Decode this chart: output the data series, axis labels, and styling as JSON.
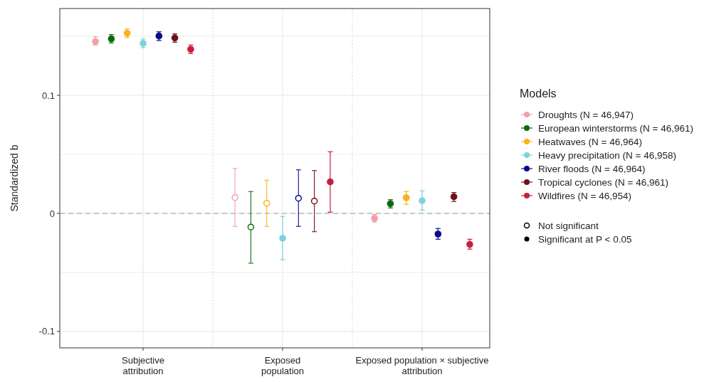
{
  "chart_data": {
    "type": "scatter",
    "ylabel": "Standardized b",
    "legend_title": "Models",
    "legend": "right",
    "grid": true,
    "marker": "circle",
    "categories": [
      "Subjective\nattribution",
      "Exposed\npopulation",
      "Exposed population × subjective\nattribution"
    ],
    "ylim": [
      -0.1139,
      0.1735
    ],
    "yticks": [
      {
        "value": -0.1,
        "label": "-0.1"
      },
      {
        "value": -0.05,
        "label": null
      },
      0,
      {
        "value": 0.05,
        "label": null
      },
      0.1,
      {
        "value": 0.15,
        "label": null
      }
    ],
    "ref_lines": [
      {
        "axis": "y",
        "value": 0,
        "line_style": "dashed",
        "color": "#bbbbbb"
      }
    ],
    "annotations": [
      "Not significant",
      "Significant at P < 0.05"
    ],
    "series": [
      {
        "name": "Droughts (N = 46,947)",
        "color": "#f0a0aa",
        "values": [
          0.1456,
          0.0134,
          -0.0042
        ],
        "errors": [
          [
            0.1426,
            0.1496
          ],
          [
            -0.011,
            0.0381
          ],
          [
            -0.0074,
            -0.001
          ]
        ]
      },
      {
        "name": "European winterstorms (N = 46,961)",
        "color": "#0b6b0b",
        "values": [
          0.1478,
          -0.0116,
          0.0082
        ],
        "errors": [
          [
            0.1444,
            0.1514
          ],
          [
            -0.0422,
            0.0185
          ],
          [
            0.0046,
            0.0116
          ]
        ]
      },
      {
        "name": "Heatwaves (N = 46,964)",
        "color": "#fbb117",
        "values": [
          0.1526,
          0.0086,
          0.0133
        ],
        "errors": [
          [
            0.149,
            0.1562
          ],
          [
            -0.011,
            0.0281
          ],
          [
            0.0077,
            0.0185
          ]
        ]
      },
      {
        "name": "Heavy precipitation (N = 46,958)",
        "color": "#7dd2de",
        "values": [
          0.144,
          -0.0211,
          0.0108
        ],
        "errors": [
          [
            0.1404,
            0.1476
          ],
          [
            -0.0392,
            -0.0026
          ],
          [
            0.0028,
            0.0191
          ]
        ]
      },
      {
        "name": "River floods (N = 46,964)",
        "color": "#0b0b8c",
        "values": [
          0.1502,
          0.0128,
          -0.0175
        ],
        "errors": [
          [
            0.1464,
            0.1538
          ],
          [
            -0.011,
            0.0369
          ],
          [
            -0.0219,
            -0.0128
          ]
        ]
      },
      {
        "name": "Tropical cyclones (N = 46,961)",
        "color": "#6e1119",
        "values": [
          0.1486,
          0.0104,
          0.0141
        ],
        "errors": [
          [
            0.145,
            0.152
          ],
          [
            -0.0155,
            0.0363
          ],
          [
            0.0101,
            0.0177
          ]
        ]
      },
      {
        "name": "Wildfires (N = 46,954)",
        "color": "#c61f40",
        "values": [
          0.139,
          0.0267,
          -0.0263
        ],
        "errors": [
          [
            0.1354,
            0.1426
          ],
          [
            0.001,
            0.0522
          ],
          [
            -0.0303,
            -0.0219
          ]
        ]
      }
    ]
  }
}
